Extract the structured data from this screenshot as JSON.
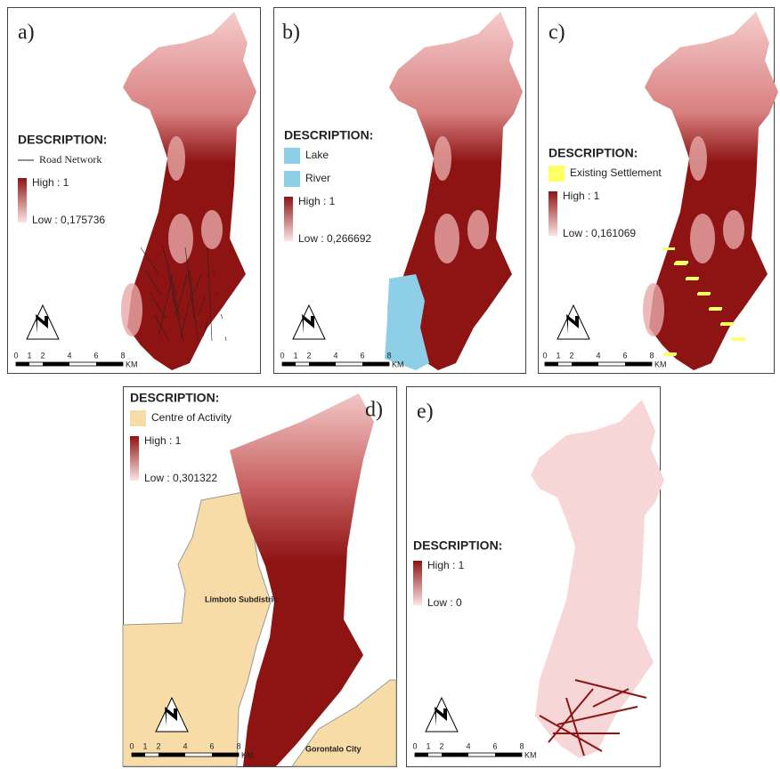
{
  "panels": [
    {
      "label": "a)",
      "legend": {
        "title": "DESCRIPTION:",
        "items": [
          "Road Network"
        ],
        "high": "High : 1",
        "low": "Low : 0,175736"
      },
      "scale": {
        "ticks": [
          0,
          1,
          2,
          4,
          6,
          8
        ],
        "unit": "KM"
      }
    },
    {
      "label": "b)",
      "legend": {
        "title": "DESCRIPTION:",
        "items": [
          "Lake",
          "River"
        ],
        "high": "High : 1",
        "low": "Low : 0,266692"
      },
      "scale": {
        "ticks": [
          0,
          1,
          2,
          4,
          6,
          8
        ],
        "unit": "KM"
      }
    },
    {
      "label": "c)",
      "legend": {
        "title": "DESCRIPTION:",
        "items": [
          "Existing Settlement"
        ],
        "high": "High : 1",
        "low": "Low : 0,161069"
      },
      "scale": {
        "ticks": [
          0,
          1,
          2,
          4,
          6,
          8
        ],
        "unit": "KM"
      }
    },
    {
      "label": "d)",
      "legend": {
        "title": "DESCRIPTION:",
        "items": [
          "Centre of Activity"
        ],
        "high": "High : 1",
        "low": "Low : 0,301322"
      },
      "scale": {
        "ticks": [
          0,
          1,
          2,
          4,
          6,
          8
        ],
        "unit": "KM"
      },
      "places": [
        "Limboto Subdistric",
        "Gorontalo City"
      ]
    },
    {
      "label": "e)",
      "legend": {
        "title": "DESCRIPTION:",
        "items": [],
        "high": "High : 1",
        "low": "Low : 0"
      },
      "scale": {
        "ticks": [
          0,
          1,
          2,
          4,
          6,
          8
        ],
        "unit": "KM"
      }
    }
  ]
}
